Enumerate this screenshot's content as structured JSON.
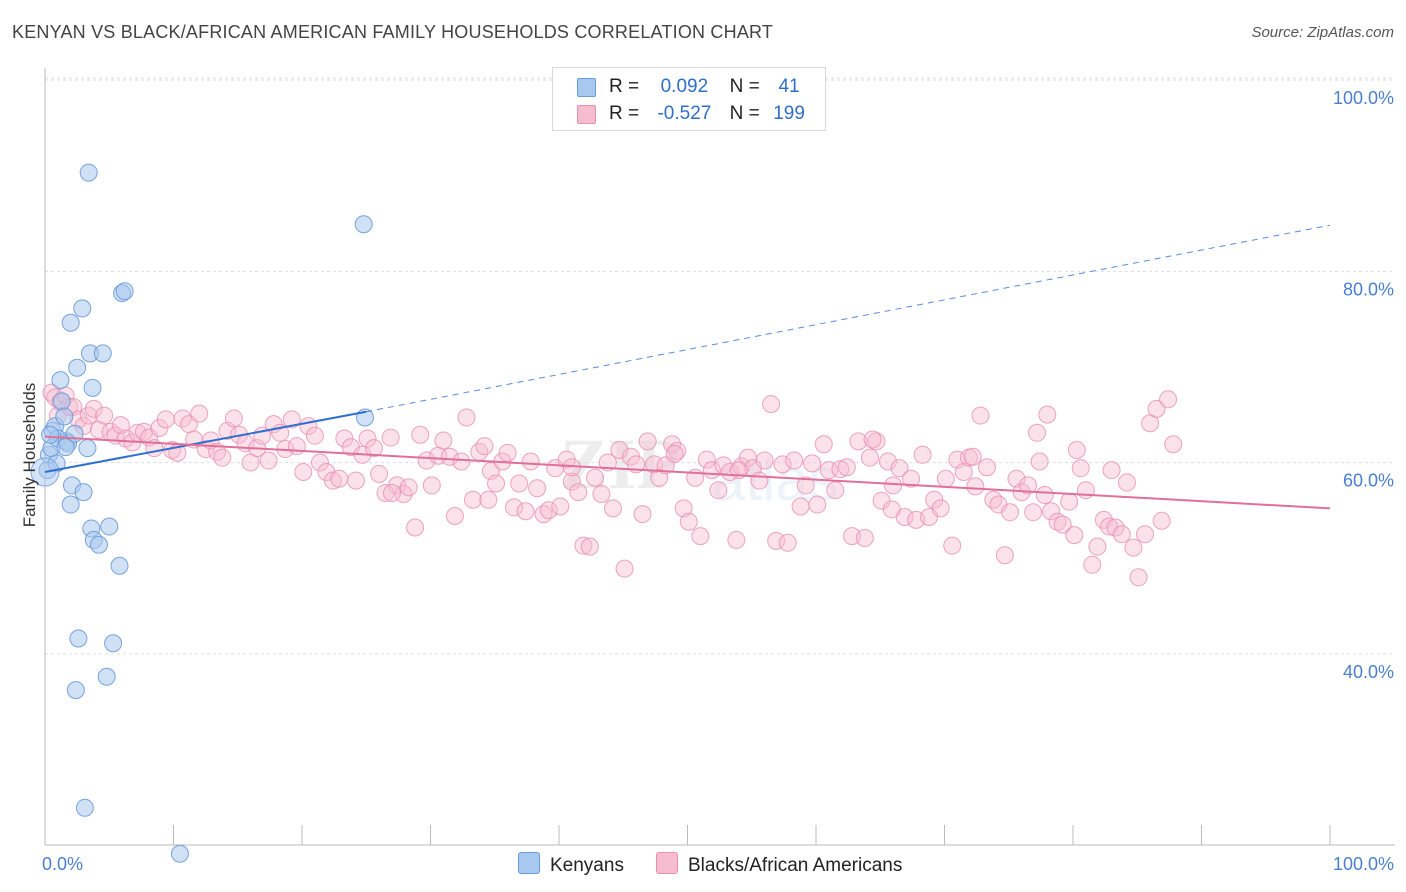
{
  "header": {
    "title": "KENYAN VS BLACK/AFRICAN AMERICAN FAMILY HOUSEHOLDS CORRELATION CHART",
    "source": "Source: ZipAtlas.com"
  },
  "legend": {
    "rows": [
      {
        "r_label": "R =",
        "r_value": "0.092",
        "n_label": "N =",
        "n_value": "41"
      },
      {
        "r_label": "R =",
        "r_value": "-0.527",
        "n_label": "N =",
        "n_value": "199"
      }
    ]
  },
  "bottom_legend": {
    "kenyans": "Kenyans",
    "blacks": "Blacks/African Americans"
  },
  "colors": {
    "blue_fill": "#a9c8ef",
    "blue_stroke": "#6a9ad8",
    "blue_line": "#2f6fd0",
    "pink_fill": "#f6bcd0",
    "pink_stroke": "#e88fb0",
    "pink_line": "#e0709a",
    "grid": "#dddddd",
    "label": "#4a7fd0"
  },
  "chart_data": {
    "type": "scatter",
    "title": "KENYAN VS BLACK/AFRICAN AMERICAN FAMILY HOUSEHOLDS CORRELATION CHART",
    "xlabel": "",
    "ylabel": "Family Households",
    "xlim": [
      0,
      100
    ],
    "ylim": [
      20,
      100
    ],
    "x_tick_labels": [
      "0.0%",
      "100.0%"
    ],
    "y_tick_labels": [
      "40.0%",
      "60.0%",
      "80.0%",
      "100.0%"
    ],
    "y_ticks": [
      40,
      60,
      80,
      100
    ],
    "grid": true,
    "legend_position": "top-center",
    "series": [
      {
        "name": "Kenyans",
        "R": 0.092,
        "N": 41,
        "trend": {
          "x0": 0,
          "y0": 60.8,
          "x1": 25,
          "y1": 67.1,
          "dashed_to_x": 100,
          "dashed_to_y": 86.6
        },
        "points": [
          [
            0.2,
            61.0
          ],
          [
            0.3,
            62.6
          ],
          [
            0.5,
            63.3
          ],
          [
            0.6,
            65.1
          ],
          [
            0.8,
            65.6
          ],
          [
            1.0,
            64.3
          ],
          [
            1.2,
            70.4
          ],
          [
            1.3,
            68.2
          ],
          [
            1.5,
            66.6
          ],
          [
            1.7,
            64.0
          ],
          [
            1.8,
            63.8
          ],
          [
            2.0,
            57.4
          ],
          [
            2.1,
            59.4
          ],
          [
            2.3,
            64.8
          ],
          [
            2.5,
            71.7
          ],
          [
            2.0,
            76.4
          ],
          [
            2.9,
            77.9
          ],
          [
            3.3,
            63.3
          ],
          [
            3.5,
            73.2
          ],
          [
            2.4,
            38.0
          ],
          [
            2.6,
            43.4
          ],
          [
            3.0,
            58.7
          ],
          [
            3.6,
            54.9
          ],
          [
            3.8,
            53.7
          ],
          [
            4.2,
            53.2
          ],
          [
            3.7,
            69.6
          ],
          [
            4.5,
            73.2
          ],
          [
            4.8,
            39.4
          ],
          [
            5.0,
            55.1
          ],
          [
            5.3,
            42.9
          ],
          [
            5.8,
            51.0
          ],
          [
            6.0,
            79.5
          ],
          [
            6.2,
            79.7
          ],
          [
            3.4,
            92.1
          ],
          [
            3.1,
            25.7
          ],
          [
            10.5,
            20.9
          ],
          [
            24.8,
            86.7
          ],
          [
            24.9,
            66.5
          ],
          [
            0.9,
            61.7
          ],
          [
            1.6,
            63.4
          ],
          [
            0.4,
            64.7
          ]
        ]
      },
      {
        "name": "Blacks/African Americans",
        "R": -0.527,
        "N": 199,
        "trend": {
          "x0": 0,
          "y0": 64.5,
          "x1": 100,
          "y1": 57.0
        },
        "points": [
          [
            0.5,
            69.1
          ],
          [
            0.8,
            68.6
          ],
          [
            1.0,
            66.7
          ],
          [
            1.2,
            68.1
          ],
          [
            1.6,
            68.8
          ],
          [
            1.9,
            67.6
          ],
          [
            2.2,
            67.6
          ],
          [
            2.6,
            66.3
          ],
          [
            3.0,
            65.6
          ],
          [
            3.4,
            66.7
          ],
          [
            3.8,
            67.4
          ],
          [
            4.2,
            65.2
          ],
          [
            4.6,
            66.7
          ],
          [
            5.1,
            65.0
          ],
          [
            5.5,
            64.6
          ],
          [
            5.9,
            65.7
          ],
          [
            6.3,
            64.3
          ],
          [
            6.8,
            63.9
          ],
          [
            7.2,
            64.9
          ],
          [
            7.7,
            65.0
          ],
          [
            8.1,
            64.4
          ],
          [
            8.5,
            63.3
          ],
          [
            8.9,
            65.4
          ],
          [
            9.4,
            66.3
          ],
          [
            9.9,
            63.1
          ],
          [
            10.3,
            62.8
          ],
          [
            10.7,
            66.4
          ],
          [
            11.2,
            65.8
          ],
          [
            11.6,
            64.2
          ],
          [
            12.0,
            66.9
          ],
          [
            12.5,
            63.2
          ],
          [
            12.9,
            64.1
          ],
          [
            13.4,
            62.9
          ],
          [
            13.8,
            62.3
          ],
          [
            14.2,
            65.1
          ],
          [
            14.7,
            66.4
          ],
          [
            15.1,
            64.7
          ],
          [
            15.6,
            63.8
          ],
          [
            16.0,
            61.8
          ],
          [
            16.5,
            63.3
          ],
          [
            16.9,
            64.6
          ],
          [
            17.4,
            62.0
          ],
          [
            17.8,
            65.8
          ],
          [
            18.3,
            64.9
          ],
          [
            18.7,
            63.2
          ],
          [
            19.2,
            66.3
          ],
          [
            19.6,
            63.5
          ],
          [
            20.1,
            60.8
          ],
          [
            20.5,
            65.6
          ],
          [
            21.0,
            64.6
          ],
          [
            21.4,
            61.8
          ],
          [
            21.9,
            60.8
          ],
          [
            22.4,
            59.9
          ],
          [
            22.9,
            60.1
          ],
          [
            23.3,
            64.3
          ],
          [
            23.8,
            63.4
          ],
          [
            24.2,
            59.9
          ],
          [
            24.7,
            62.6
          ],
          [
            25.1,
            64.3
          ],
          [
            25.6,
            63.3
          ],
          [
            26.0,
            60.6
          ],
          [
            26.5,
            58.6
          ],
          [
            26.9,
            64.4
          ],
          [
            27.4,
            59.4
          ],
          [
            27.9,
            58.5
          ],
          [
            28.3,
            59.2
          ],
          [
            28.8,
            55.0
          ],
          [
            29.2,
            64.7
          ],
          [
            29.7,
            62.0
          ],
          [
            30.1,
            59.4
          ],
          [
            30.6,
            62.5
          ],
          [
            31.0,
            64.1
          ],
          [
            31.5,
            62.4
          ],
          [
            31.9,
            56.2
          ],
          [
            32.4,
            61.9
          ],
          [
            32.8,
            66.5
          ],
          [
            33.3,
            57.9
          ],
          [
            33.8,
            62.9
          ],
          [
            34.2,
            63.5
          ],
          [
            34.7,
            60.9
          ],
          [
            35.1,
            59.6
          ],
          [
            35.6,
            61.9
          ],
          [
            36.0,
            62.8
          ],
          [
            36.5,
            57.1
          ],
          [
            36.9,
            59.6
          ],
          [
            37.4,
            56.7
          ],
          [
            37.8,
            61.9
          ],
          [
            38.3,
            59.1
          ],
          [
            38.8,
            56.4
          ],
          [
            39.2,
            56.8
          ],
          [
            39.7,
            61.2
          ],
          [
            40.1,
            57.2
          ],
          [
            40.6,
            62.1
          ],
          [
            41.0,
            59.8
          ],
          [
            41.5,
            58.7
          ],
          [
            41.9,
            53.1
          ],
          [
            42.4,
            53.0
          ],
          [
            42.8,
            60.2
          ],
          [
            43.3,
            58.5
          ],
          [
            43.8,
            61.8
          ],
          [
            44.2,
            57.0
          ],
          [
            44.7,
            63.1
          ],
          [
            45.1,
            50.7
          ],
          [
            45.6,
            62.4
          ],
          [
            46.0,
            61.6
          ],
          [
            46.5,
            56.4
          ],
          [
            46.9,
            64.0
          ],
          [
            47.4,
            61.6
          ],
          [
            47.8,
            60.2
          ],
          [
            48.3,
            61.5
          ],
          [
            48.8,
            63.7
          ],
          [
            49.2,
            63.0
          ],
          [
            49.7,
            57.0
          ],
          [
            50.1,
            55.6
          ],
          [
            50.6,
            60.2
          ],
          [
            51.0,
            54.1
          ],
          [
            51.5,
            62.1
          ],
          [
            51.9,
            61.0
          ],
          [
            52.4,
            58.9
          ],
          [
            52.8,
            61.5
          ],
          [
            53.3,
            60.8
          ],
          [
            53.8,
            53.7
          ],
          [
            54.2,
            61.4
          ],
          [
            54.7,
            62.3
          ],
          [
            55.1,
            61.2
          ],
          [
            55.6,
            59.9
          ],
          [
            56.0,
            62.0
          ],
          [
            56.5,
            67.9
          ],
          [
            56.9,
            53.6
          ],
          [
            57.4,
            61.6
          ],
          [
            57.8,
            53.4
          ],
          [
            58.3,
            62.0
          ],
          [
            58.8,
            57.2
          ],
          [
            59.2,
            59.4
          ],
          [
            59.7,
            61.7
          ],
          [
            60.1,
            57.4
          ],
          [
            60.6,
            63.7
          ],
          [
            61.0,
            61.0
          ],
          [
            61.5,
            58.9
          ],
          [
            61.9,
            61.1
          ],
          [
            62.4,
            61.3
          ],
          [
            62.8,
            54.1
          ],
          [
            63.3,
            64.0
          ],
          [
            63.8,
            53.9
          ],
          [
            64.2,
            62.3
          ],
          [
            64.7,
            64.0
          ],
          [
            65.1,
            57.8
          ],
          [
            65.6,
            61.9
          ],
          [
            66.0,
            59.4
          ],
          [
            66.5,
            61.2
          ],
          [
            66.9,
            56.1
          ],
          [
            67.4,
            60.1
          ],
          [
            67.8,
            55.8
          ],
          [
            68.3,
            62.6
          ],
          [
            68.8,
            56.1
          ],
          [
            69.2,
            57.9
          ],
          [
            69.7,
            57.0
          ],
          [
            70.1,
            60.1
          ],
          [
            70.6,
            53.1
          ],
          [
            71.0,
            62.1
          ],
          [
            71.5,
            60.8
          ],
          [
            71.9,
            62.3
          ],
          [
            72.4,
            59.3
          ],
          [
            72.8,
            66.7
          ],
          [
            73.3,
            61.3
          ],
          [
            73.8,
            57.9
          ],
          [
            74.2,
            57.4
          ],
          [
            74.7,
            52.1
          ],
          [
            75.1,
            56.6
          ],
          [
            75.6,
            60.1
          ],
          [
            76.0,
            58.7
          ],
          [
            76.5,
            59.4
          ],
          [
            76.9,
            56.6
          ],
          [
            77.4,
            61.9
          ],
          [
            77.8,
            58.4
          ],
          [
            78.3,
            56.7
          ],
          [
            78.8,
            55.6
          ],
          [
            79.2,
            55.3
          ],
          [
            79.7,
            57.7
          ],
          [
            80.1,
            54.2
          ],
          [
            80.6,
            61.2
          ],
          [
            81.0,
            58.9
          ],
          [
            81.5,
            51.1
          ],
          [
            81.9,
            53.0
          ],
          [
            82.4,
            55.8
          ],
          [
            82.8,
            55.1
          ],
          [
            83.3,
            55.0
          ],
          [
            83.8,
            54.3
          ],
          [
            84.2,
            59.7
          ],
          [
            84.7,
            52.9
          ],
          [
            85.1,
            49.8
          ],
          [
            85.6,
            54.3
          ],
          [
            86.0,
            65.9
          ],
          [
            86.5,
            67.4
          ],
          [
            86.9,
            55.7
          ],
          [
            87.4,
            68.4
          ],
          [
            87.8,
            63.7
          ],
          [
            80.3,
            63.1
          ],
          [
            65.9,
            56.9
          ],
          [
            64.4,
            64.2
          ],
          [
            72.2,
            62.4
          ],
          [
            77.2,
            64.9
          ],
          [
            78.0,
            66.8
          ],
          [
            83.0,
            61.0
          ],
          [
            49.0,
            62.7
          ],
          [
            54.0,
            61.0
          ],
          [
            41.0,
            61.3
          ],
          [
            34.5,
            57.9
          ],
          [
            27.0,
            58.6
          ]
        ]
      }
    ]
  }
}
